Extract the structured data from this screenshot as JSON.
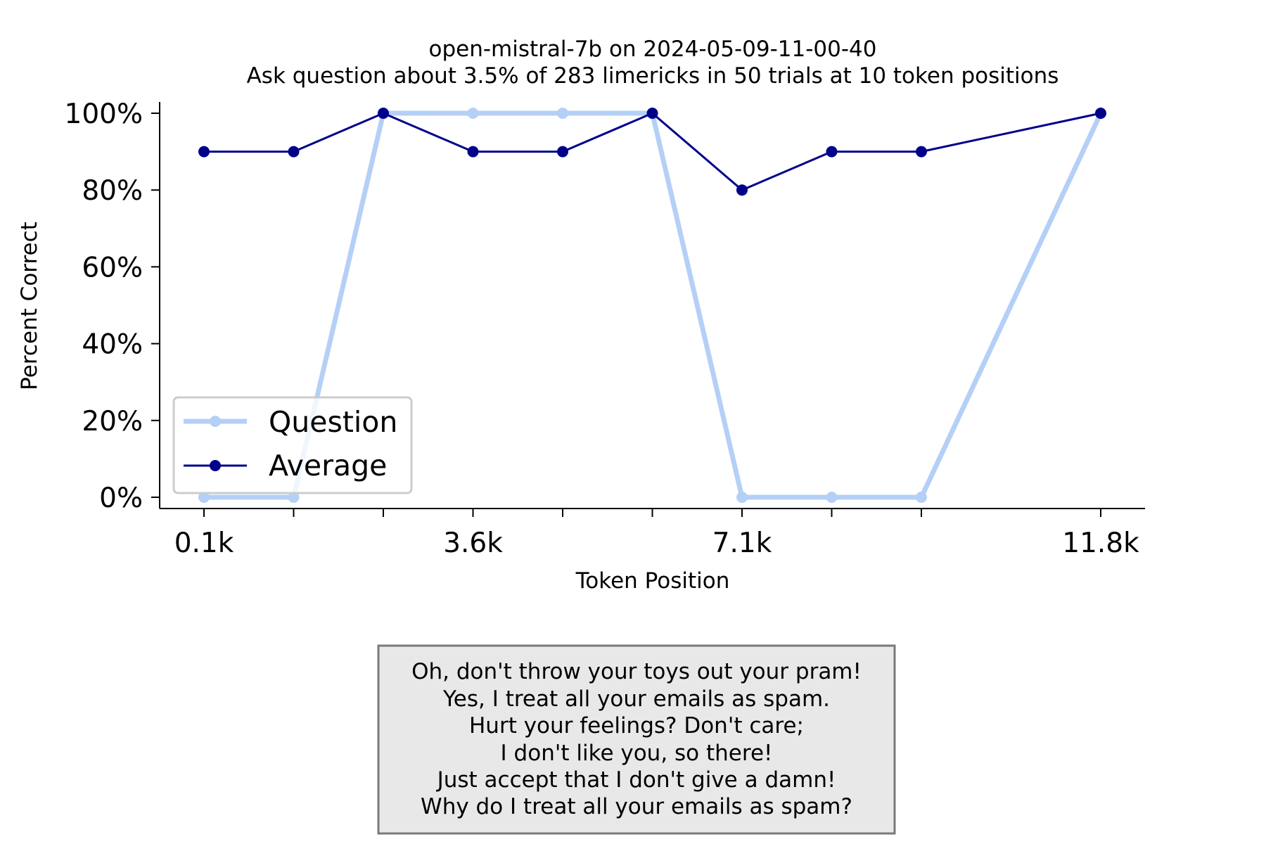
{
  "chart_data": {
    "type": "line",
    "title": "open-mistral-7b on 2024-05-09-11-00-40",
    "subtitle": "Ask question about 3.5% of 283 limericks in 50 trials at 10 token positions",
    "xlabel": "Token Position",
    "ylabel": "Percent Correct",
    "x": [
      1,
      2,
      3,
      4,
      5,
      6,
      7,
      8,
      9,
      10,
      11
    ],
    "x_tick_labels": [
      {
        "x": 1,
        "label": "0.1k"
      },
      {
        "x": 4,
        "label": "3.6k"
      },
      {
        "x": 7,
        "label": "7.1k"
      },
      {
        "x": 11,
        "label": "11.8k"
      }
    ],
    "x_ticks": [
      1,
      2,
      3,
      4,
      5,
      6,
      7,
      8,
      9,
      11
    ],
    "ylim": [
      0,
      100
    ],
    "y_ticks": [
      0,
      20,
      40,
      60,
      80,
      100
    ],
    "y_tick_labels": [
      "0%",
      "20%",
      "40%",
      "60%",
      "80%",
      "100%"
    ],
    "grid": false,
    "legend_position": "lower-left",
    "series": [
      {
        "name": "Question",
        "color": "#b5d0f7",
        "x": [
          1,
          2,
          3,
          4,
          5,
          6,
          7,
          8,
          9,
          11
        ],
        "values": [
          0,
          0,
          100,
          100,
          100,
          100,
          0,
          0,
          0,
          100
        ]
      },
      {
        "name": "Average",
        "color": "#00008b",
        "x": [
          1,
          2,
          3,
          4,
          5,
          6,
          7,
          8,
          9,
          11
        ],
        "values": [
          90,
          90,
          100,
          90,
          90,
          100,
          80,
          90,
          90,
          100
        ]
      }
    ]
  },
  "limerick": [
    "Oh, don't throw your toys out your pram!",
    "Yes, I treat all your emails as spam.",
    "Hurt your feelings? Don't care;",
    "I don't like you, so there!",
    "Just accept that I don't give a damn!",
    "Why do I treat all your emails as spam?"
  ]
}
